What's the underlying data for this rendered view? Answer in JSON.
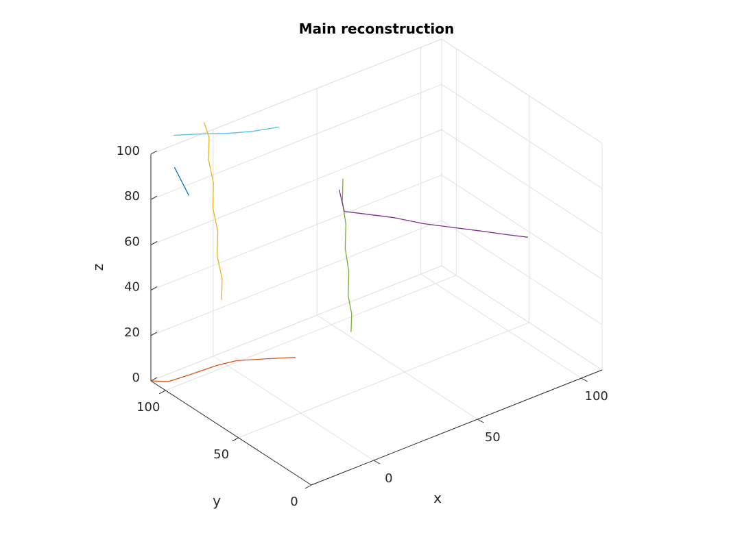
{
  "chart_data": {
    "type": "line",
    "title": "Main reconstruction",
    "xlabel": "x",
    "ylabel": "y",
    "zlabel": "z",
    "xlim": [
      -30,
      110
    ],
    "ylim": [
      0,
      110
    ],
    "zlim": [
      0,
      100
    ],
    "xticks": [
      0,
      50,
      100
    ],
    "xtick_labels": [
      "0",
      "50",
      "100"
    ],
    "yticks": [
      0,
      50,
      100
    ],
    "ytick_labels": [
      "0",
      "50",
      "100"
    ],
    "zticks": [
      0,
      20,
      40,
      60,
      80,
      100
    ],
    "ztick_labels": [
      "0",
      "20",
      "40",
      "60",
      "80",
      "100"
    ],
    "grid": true,
    "series": [
      {
        "color": "#0072BD",
        "points": [
          [
            -27,
            98,
            98
          ],
          [
            -25,
            96,
            92
          ],
          [
            -23,
            94,
            86
          ]
        ]
      },
      {
        "color": "#D95319",
        "points": [
          [
            -30,
            110,
            0
          ],
          [
            -25,
            105,
            0
          ],
          [
            -16,
            104,
            0
          ],
          [
            -3,
            103,
            0
          ],
          [
            5,
            101,
            0
          ],
          [
            14,
            95,
            0
          ],
          [
            24,
            88,
            0
          ]
        ]
      },
      {
        "color": "#EDB120",
        "points": [
          [
            -10,
            102,
            110
          ],
          [
            -9,
            100,
            104
          ],
          [
            -10,
            99,
            95
          ],
          [
            -9,
            97,
            85
          ],
          [
            -10,
            96,
            75
          ],
          [
            -9,
            94,
            65
          ],
          [
            -10,
            93,
            55
          ],
          [
            -9,
            91,
            45
          ],
          [
            -10,
            90,
            37
          ]
        ]
      },
      {
        "color": "#4DBEEE",
        "points": [
          [
            -28,
            97,
            113
          ],
          [
            -15,
            99,
            108
          ],
          [
            0,
            101,
            102
          ],
          [
            14,
            103,
            97
          ],
          [
            28,
            105,
            93
          ]
        ]
      },
      {
        "color": "#77AC30",
        "points": [
          [
            40,
            78,
            77
          ],
          [
            39,
            77,
            68
          ],
          [
            40,
            76,
            58
          ],
          [
            39,
            75,
            48
          ],
          [
            40,
            74,
            38
          ],
          [
            39,
            73,
            28
          ],
          [
            40,
            72,
            20
          ],
          [
            39,
            71,
            13
          ]
        ]
      },
      {
        "color": "#7E2F8E",
        "points": [
          [
            60,
            109,
            52
          ],
          [
            61,
            107,
            43
          ],
          [
            66,
            100,
            43
          ],
          [
            73,
            90,
            43
          ],
          [
            80,
            80,
            42
          ],
          [
            87,
            70,
            42
          ],
          [
            94,
            60,
            42
          ],
          [
            100,
            51,
            42
          ],
          [
            105,
            44,
            42
          ]
        ]
      }
    ]
  }
}
